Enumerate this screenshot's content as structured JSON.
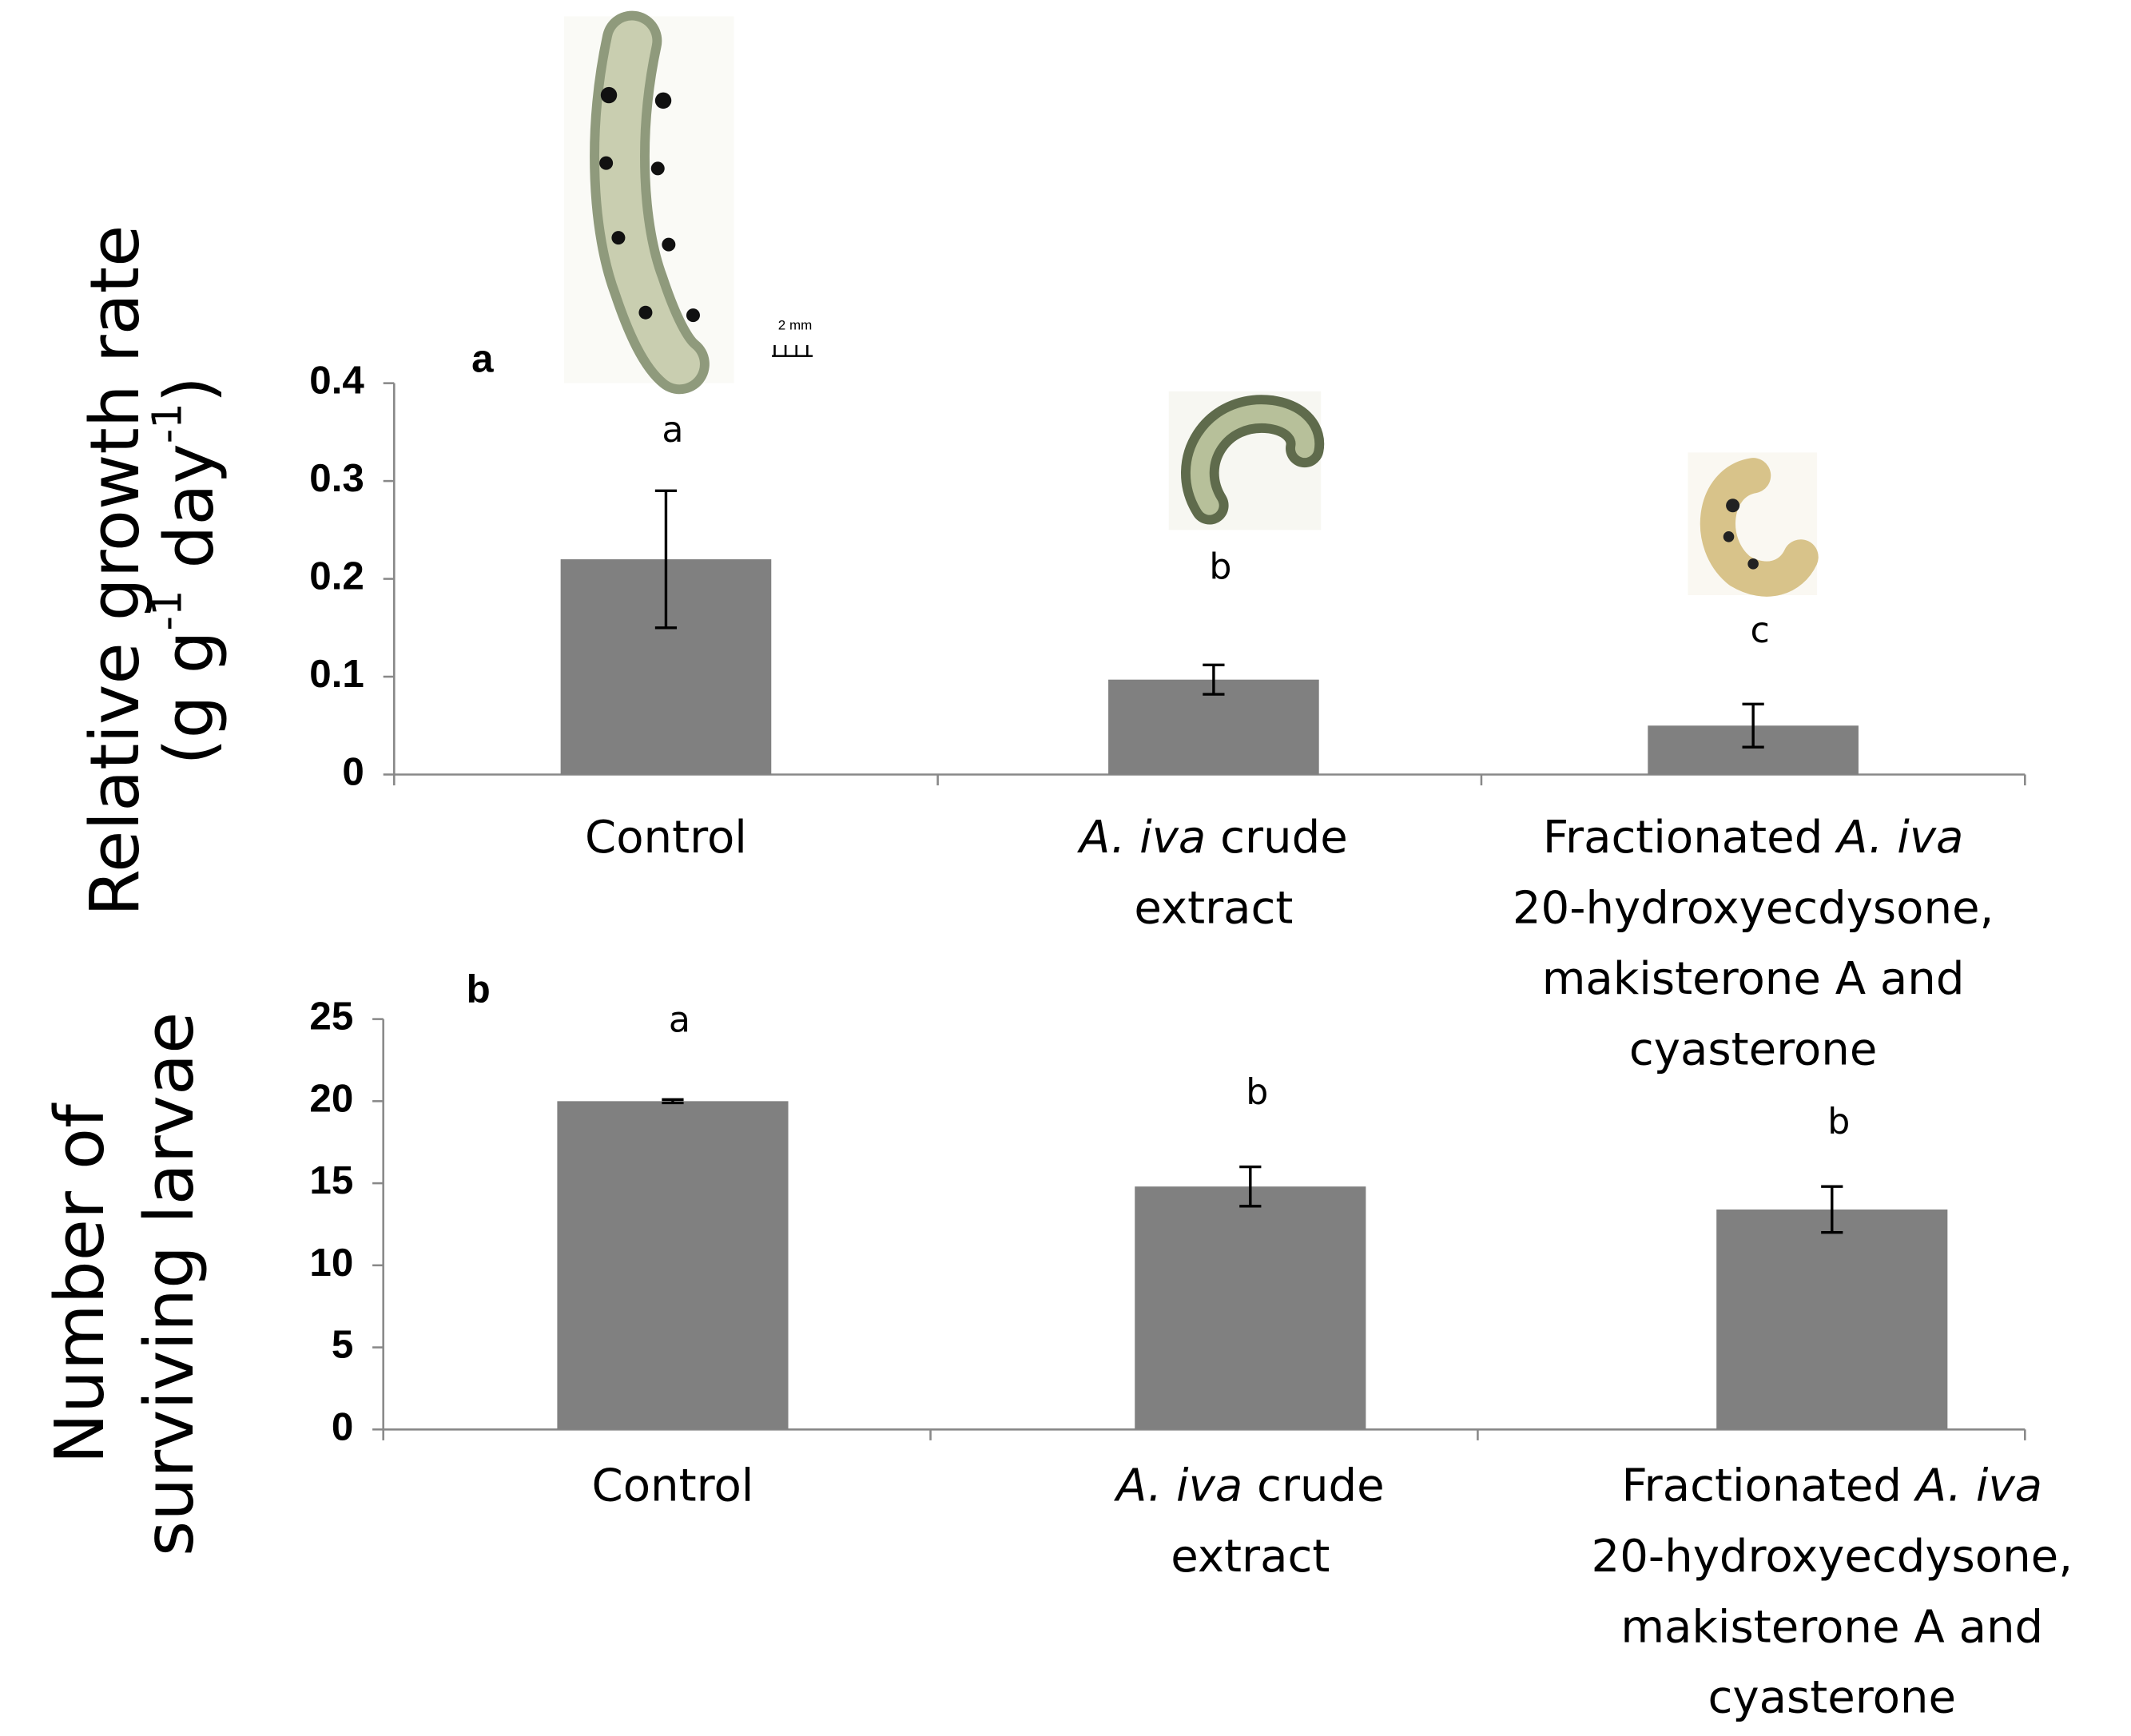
{
  "chart_data": [
    {
      "type": "bar",
      "panel_label": "a",
      "ylabel": [
        "Relative growth rate",
        [
          "(g g",
          "-1",
          " day",
          "-1",
          ")"
        ]
      ],
      "categories": [
        [
          [
            {
              "text": "Control"
            }
          ]
        ],
        [
          [
            {
              "text": "A. iva",
              "style": "italic"
            },
            {
              "text": " crude"
            }
          ],
          [
            {
              "text": "extract"
            }
          ]
        ],
        [
          [
            {
              "text": "Fractionated "
            },
            {
              "text": "A. iva",
              "style": "italic"
            }
          ],
          [
            {
              "text": "20-hydroxyecdysone,"
            }
          ],
          [
            {
              "text": "makisterone A and"
            }
          ],
          [
            {
              "text": "cyasterone"
            }
          ]
        ]
      ],
      "values": [
        0.22,
        0.097,
        0.05
      ],
      "errors": [
        0.07,
        0.015,
        0.022
      ],
      "letters": [
        "a",
        "b",
        "c"
      ],
      "letter_values": [
        0.35,
        0.21,
        0.145
      ],
      "color": "#808080",
      "ylim": [
        0,
        0.4
      ],
      "yticks": [
        0,
        0.1,
        0.2,
        0.3,
        0.4
      ],
      "scale_label": "2 mm"
    },
    {
      "type": "bar",
      "panel_label": "b",
      "ylabel": [
        "Number of",
        "surviving larvae"
      ],
      "categories": [
        [
          [
            {
              "text": "Control"
            }
          ]
        ],
        [
          [
            {
              "text": "A. iva",
              "style": "italic"
            },
            {
              "text": " crude"
            }
          ],
          [
            {
              "text": "extract"
            }
          ]
        ],
        [
          [
            {
              "text": "Fractionated "
            },
            {
              "text": "A. iva",
              "style": "italic"
            }
          ],
          [
            {
              "text": "20-hydroxyecdysone,"
            }
          ],
          [
            {
              "text": "makisterone A and"
            }
          ],
          [
            {
              "text": "cyasterone"
            }
          ]
        ]
      ],
      "values": [
        20,
        14.8,
        13.4
      ],
      "errors": [
        0.1,
        1.2,
        1.4
      ],
      "letters": [
        "a",
        "b",
        "b"
      ],
      "letter_values": [
        24.8,
        20.4,
        18.6
      ],
      "color": "#808080",
      "ylim": [
        0,
        25
      ],
      "yticks": [
        0,
        5,
        10,
        15,
        20,
        25
      ]
    }
  ]
}
